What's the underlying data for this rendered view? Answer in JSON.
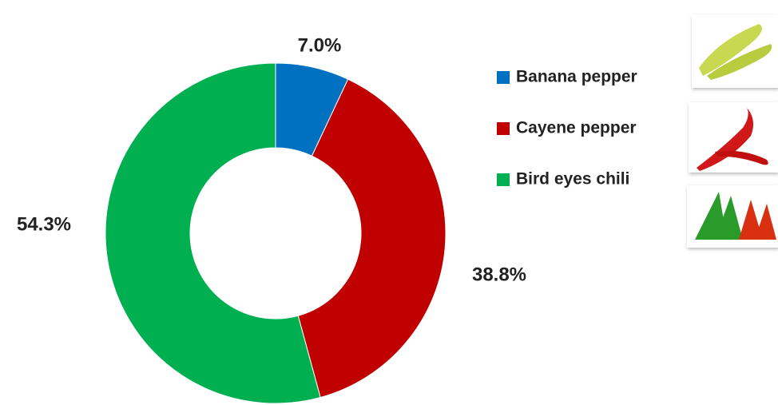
{
  "chart_data": {
    "type": "donut",
    "categories": [
      "Banana pepper",
      "Cayene pepper",
      "Bird eyes chili"
    ],
    "values": [
      7.0,
      38.8,
      54.3
    ],
    "value_labels": [
      "7.0%",
      "38.8%",
      "54.3%"
    ],
    "colors": [
      "#0070c0",
      "#c00000",
      "#00b050"
    ],
    "legend": "right"
  }
}
